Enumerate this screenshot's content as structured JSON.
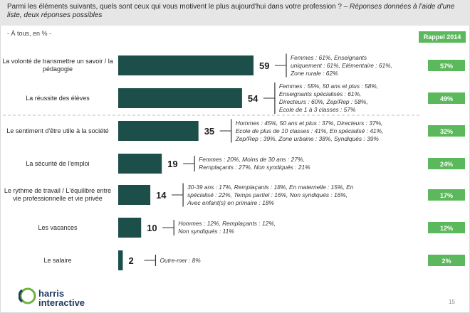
{
  "header": {
    "question": "Parmi les éléments suivants, quels sont ceux qui vous motivent le plus aujourd'hui dans votre profession ?",
    "question_tail": "– Réponses données à l'aide d'une liste, deux réponses possibles"
  },
  "subtitle": "- À tous, en % -",
  "rappel_header": "Rappel 2014",
  "colors": {
    "bar": "#1c4f4a",
    "rappel": "#5cb85c",
    "dash": "#bfbfbf"
  },
  "chart_data": {
    "type": "bar",
    "orientation": "horizontal",
    "categories": [
      "La volonté de transmettre un savoir / la pédagogie",
      "La réussite des élèves",
      "Le sentiment d'être utile à la société",
      "La sécurité de l'emploi",
      "Le rythme de travail / L'équilibre entre vie professionnelle et vie privée",
      "Les vacances",
      "Le salaire"
    ],
    "values": [
      59,
      54,
      35,
      19,
      14,
      10,
      2
    ],
    "rappel_2014": [
      "57%",
      "49%",
      "32%",
      "24%",
      "17%",
      "12%",
      "2%"
    ],
    "notes": [
      [
        "Femmes : 61%, Enseignants",
        "uniquement : 61%, Elémentaire : 61%,",
        "Zone rurale : 62%"
      ],
      [
        "Femmes : 55%, 50 ans et plus : 58%,",
        "Enseignants spécialisés : 61%,",
        "Directeurs : 60%, Zep/Rep : 58%,",
        "Ecole de 1 à 3 classes : 57%"
      ],
      [
        "Hommes : 45%, 50 ans et plus : 37%, Directeurs : 37%,",
        "Ecole de plus de 10 classes : 41%, En spécialisé : 41%,",
        "Zep/Rep : 39%, Zone urbaine : 38%, Syndiqués : 39%"
      ],
      [
        "Femmes : 20%, Moins de 30 ans : 27%,",
        "Remplaçants : 27%, Non syndiqués : 21%"
      ],
      [
        "30-39 ans : 17%, Remplaçants : 18%, En maternelle : 15%, En",
        "spécialisé : 22%, Temps partiel : 16%, Non syndiqués : 16%,",
        "Avec enfant(s) en primaire : 18%"
      ],
      [
        "Hommes : 12%, Remplaçants : 12%,",
        "Non syndiqués : 11%"
      ],
      [
        "Outre-mer : 8%"
      ]
    ],
    "xlim": [
      0,
      100
    ]
  },
  "footer": {
    "logo_line1": "harris",
    "logo_line2": "interactive",
    "page": "15"
  }
}
